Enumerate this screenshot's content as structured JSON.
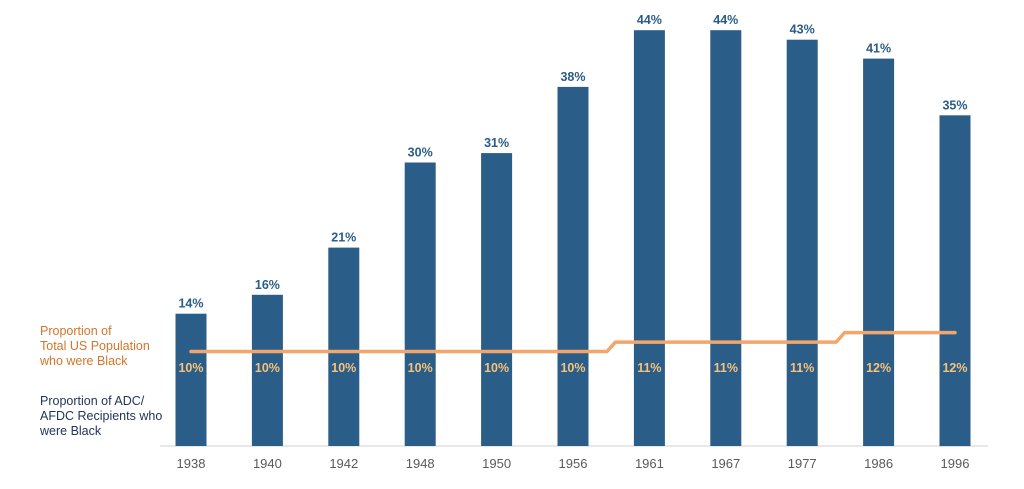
{
  "chart_data": {
    "type": "bar",
    "categories": [
      "1938",
      "1940",
      "1942",
      "1948",
      "1950",
      "1956",
      "1961",
      "1967",
      "1977",
      "1986",
      "1996"
    ],
    "series": [
      {
        "name": "Proportion of ADC/ AFDC Recipients who were Black",
        "type": "bar",
        "values": [
          14,
          16,
          21,
          30,
          31,
          38,
          44,
          44,
          43,
          41,
          35
        ],
        "labels": [
          "14%",
          "16%",
          "21%",
          "30%",
          "31%",
          "38%",
          "44%",
          "44%",
          "43%",
          "41%",
          "35%"
        ]
      },
      {
        "name": "Proportion of Total US Population who were Black",
        "type": "line",
        "values": [
          10,
          10,
          10,
          10,
          10,
          10,
          11,
          11,
          11,
          12,
          12
        ],
        "labels": [
          "10%",
          "10%",
          "10%",
          "10%",
          "10%",
          "10%",
          "11%",
          "11%",
          "11%",
          "12%",
          "12%"
        ]
      }
    ],
    "ylim": [
      0,
      45
    ],
    "grid": false,
    "legend_placement": "left",
    "title": "",
    "xlabel": "",
    "ylabel": ""
  },
  "legend": {
    "population_lines": [
      "Proportion of",
      "Total US Population",
      "who were Black"
    ],
    "afdc_lines": [
      "Proportion of ADC/",
      "AFDC Recipients who",
      "were Black"
    ]
  },
  "colors": {
    "bar": "#2a5d87",
    "line": "#f2a66b",
    "bar_label": "#2a5d87",
    "line_label": "#f7c27a",
    "population_legend": "#d4752a",
    "afdc_legend": "#22355e",
    "axis_tick": "#5a5a5a",
    "baseline": "#d0d0d0"
  }
}
